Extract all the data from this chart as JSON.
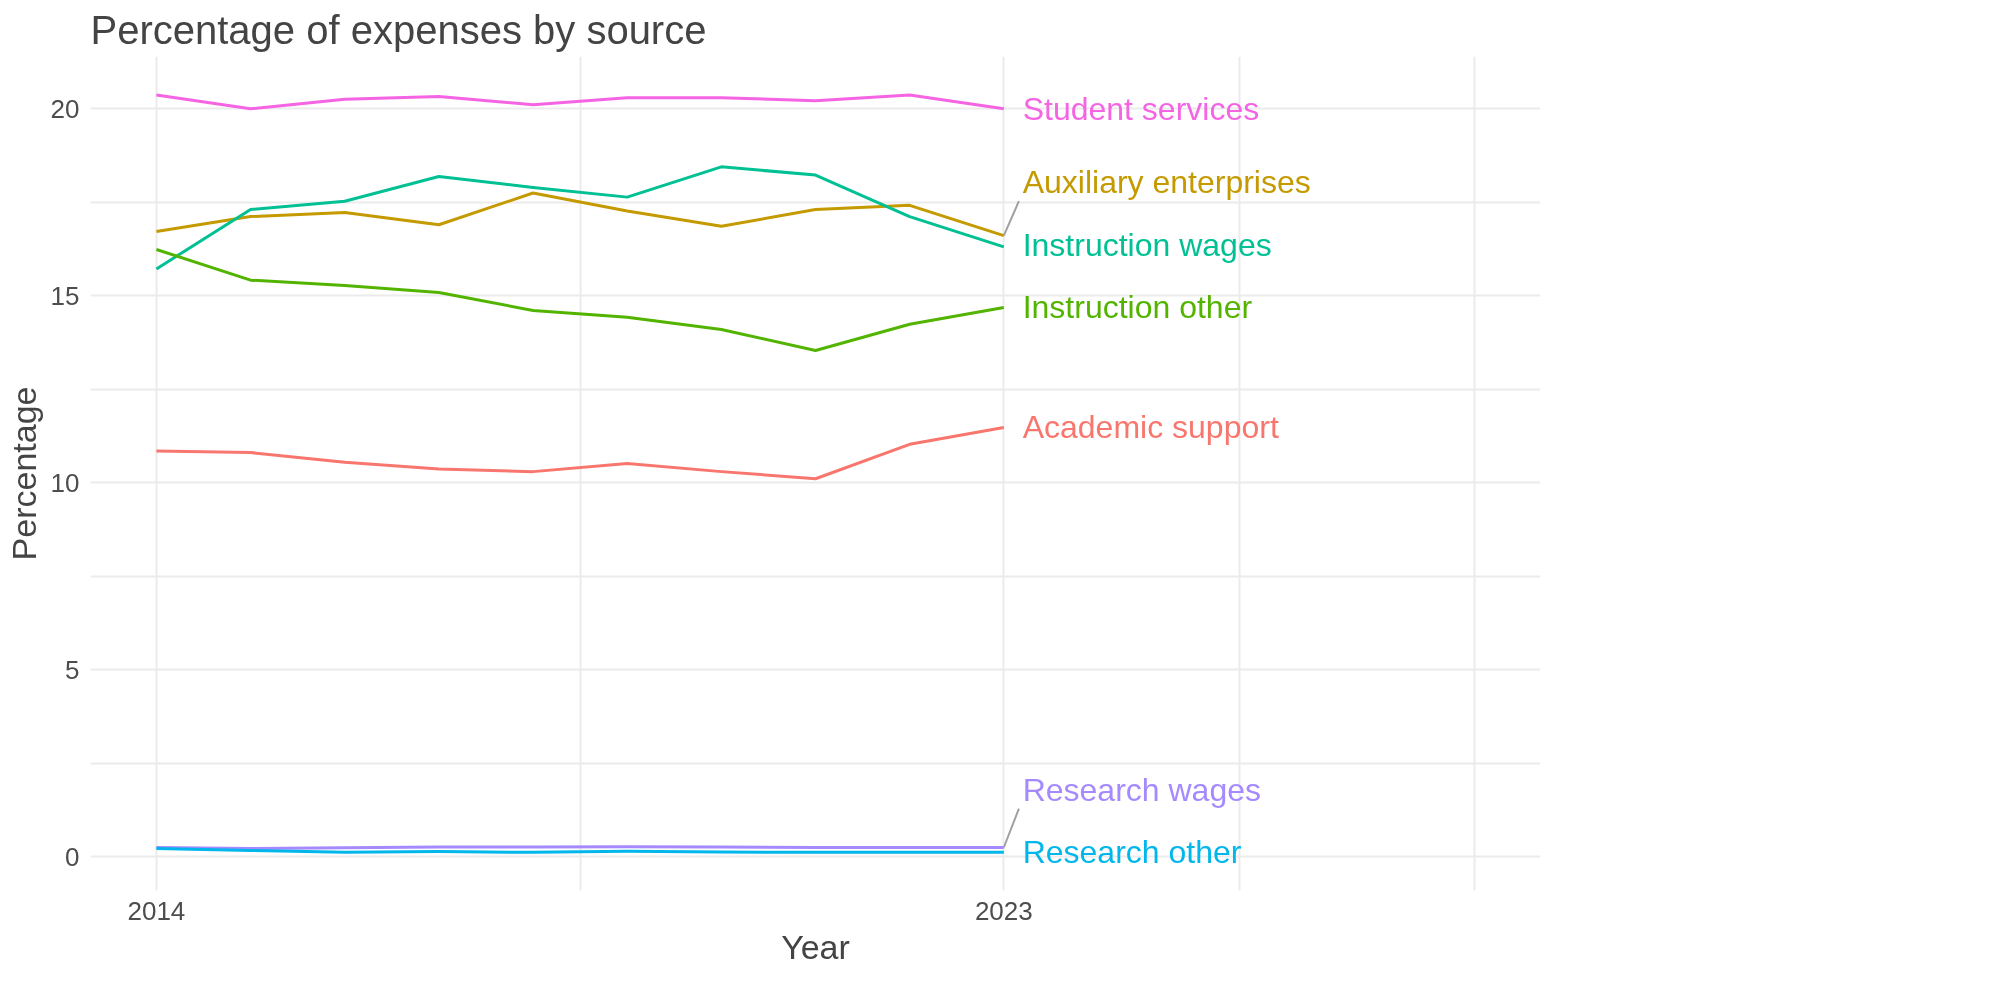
{
  "chart_data": {
    "type": "line",
    "title": "Percentage of expenses by source",
    "xlabel": "Year",
    "ylabel": "Percentage",
    "x": [
      2014,
      2015,
      2016,
      2017,
      2018,
      2019,
      2020,
      2021,
      2022,
      2023
    ],
    "series": [
      {
        "name": "Student services",
        "color": "#f564e3",
        "values": [
          20.37,
          20.0,
          20.26,
          20.33,
          20.11,
          20.3,
          20.3,
          20.22,
          20.37,
          20.0
        ]
      },
      {
        "name": "Auxiliary enterprises",
        "color": "#c49a00",
        "values": [
          16.72,
          17.12,
          17.23,
          16.9,
          17.75,
          17.27,
          16.86,
          17.31,
          17.42,
          16.61
        ]
      },
      {
        "name": "Instruction wages",
        "color": "#00c094",
        "values": [
          15.72,
          17.31,
          17.53,
          18.19,
          17.9,
          17.64,
          18.45,
          18.23,
          17.12,
          16.31
        ]
      },
      {
        "name": "Instruction other",
        "color": "#53b400",
        "values": [
          16.24,
          15.42,
          15.28,
          15.09,
          14.61,
          14.43,
          14.1,
          13.54,
          14.24,
          14.69
        ]
      },
      {
        "name": "Academic support",
        "color": "#f8766d",
        "values": [
          10.85,
          10.81,
          10.55,
          10.37,
          10.3,
          10.52,
          10.3,
          10.11,
          11.03,
          11.48
        ]
      },
      {
        "name": "Research wages",
        "color": "#a58aff",
        "values": [
          0.25,
          0.22,
          0.24,
          0.26,
          0.26,
          0.27,
          0.26,
          0.25,
          0.25,
          0.25
        ]
      },
      {
        "name": "Research other",
        "color": "#00b6eb",
        "values": [
          0.22,
          0.17,
          0.12,
          0.14,
          0.12,
          0.15,
          0.13,
          0.12,
          0.12,
          0.12
        ]
      }
    ],
    "xlim": [
      2013.3,
      2028.7
    ],
    "ylim": [
      -0.9,
      21.4
    ],
    "xticks": [
      2014,
      {
        "value": 2018.5,
        "label": null
      },
      2023,
      {
        "value": 2025.5,
        "label": null
      },
      {
        "value": 2028,
        "label": null
      }
    ],
    "yticks": [
      0,
      {
        "value": 2.5,
        "label": null
      },
      5,
      {
        "value": 7.5,
        "label": null
      },
      10,
      {
        "value": 12.5,
        "label": null
      },
      15,
      {
        "value": 17.5,
        "label": null
      },
      20
    ],
    "grid": true,
    "legend": false,
    "line_style": "solid",
    "marker": "none"
  }
}
